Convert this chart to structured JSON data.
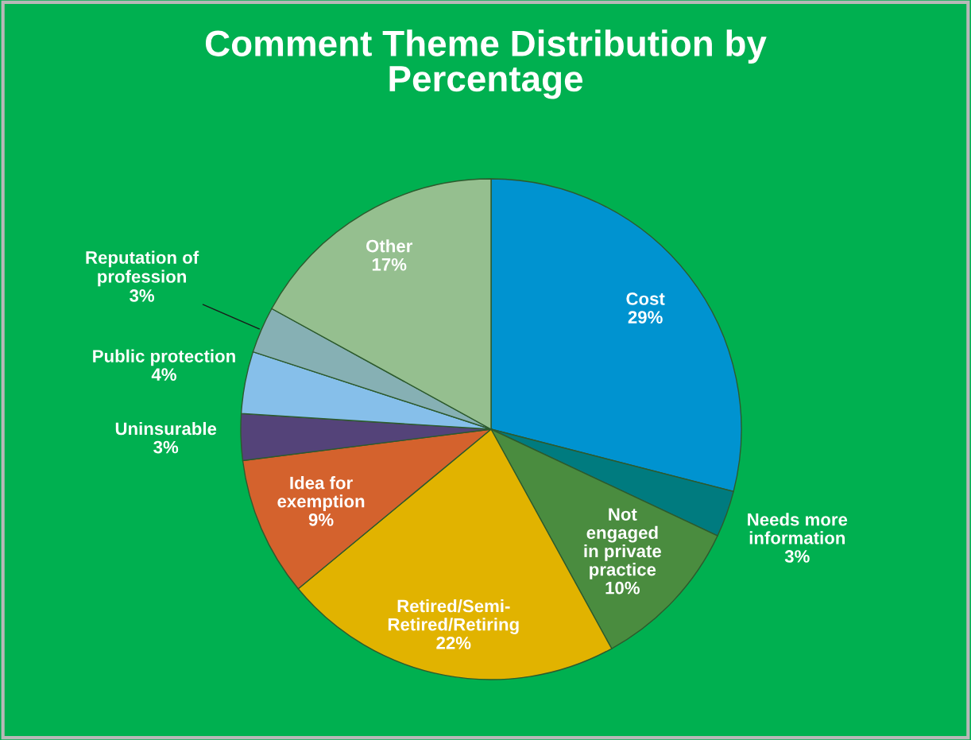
{
  "chart_data": {
    "type": "pie",
    "title": "Comment Theme Distribution by\nPercentage",
    "categories": [
      "Cost",
      "Needs more\ninformation",
      "Not\nengaged\nin private\npractice",
      "Retired/Semi-\nRetired/Retiring",
      "Idea for\nexemption",
      "Uninsurable",
      "Public protection",
      "Reputation of\nprofession",
      "Other"
    ],
    "values": [
      29,
      3,
      10,
      22,
      9,
      3,
      4,
      3,
      17
    ],
    "colors": [
      "#0093d0",
      "#007b7f",
      "#4a8c3f",
      "#e1b300",
      "#d4622d",
      "#544379",
      "#86bfea",
      "#86b0b4",
      "#95bf8f"
    ],
    "value_labels": [
      "29%",
      "3%",
      "10%",
      "22%",
      "9%",
      "3%",
      "4%",
      "3%",
      "17%"
    ],
    "legend": false
  }
}
